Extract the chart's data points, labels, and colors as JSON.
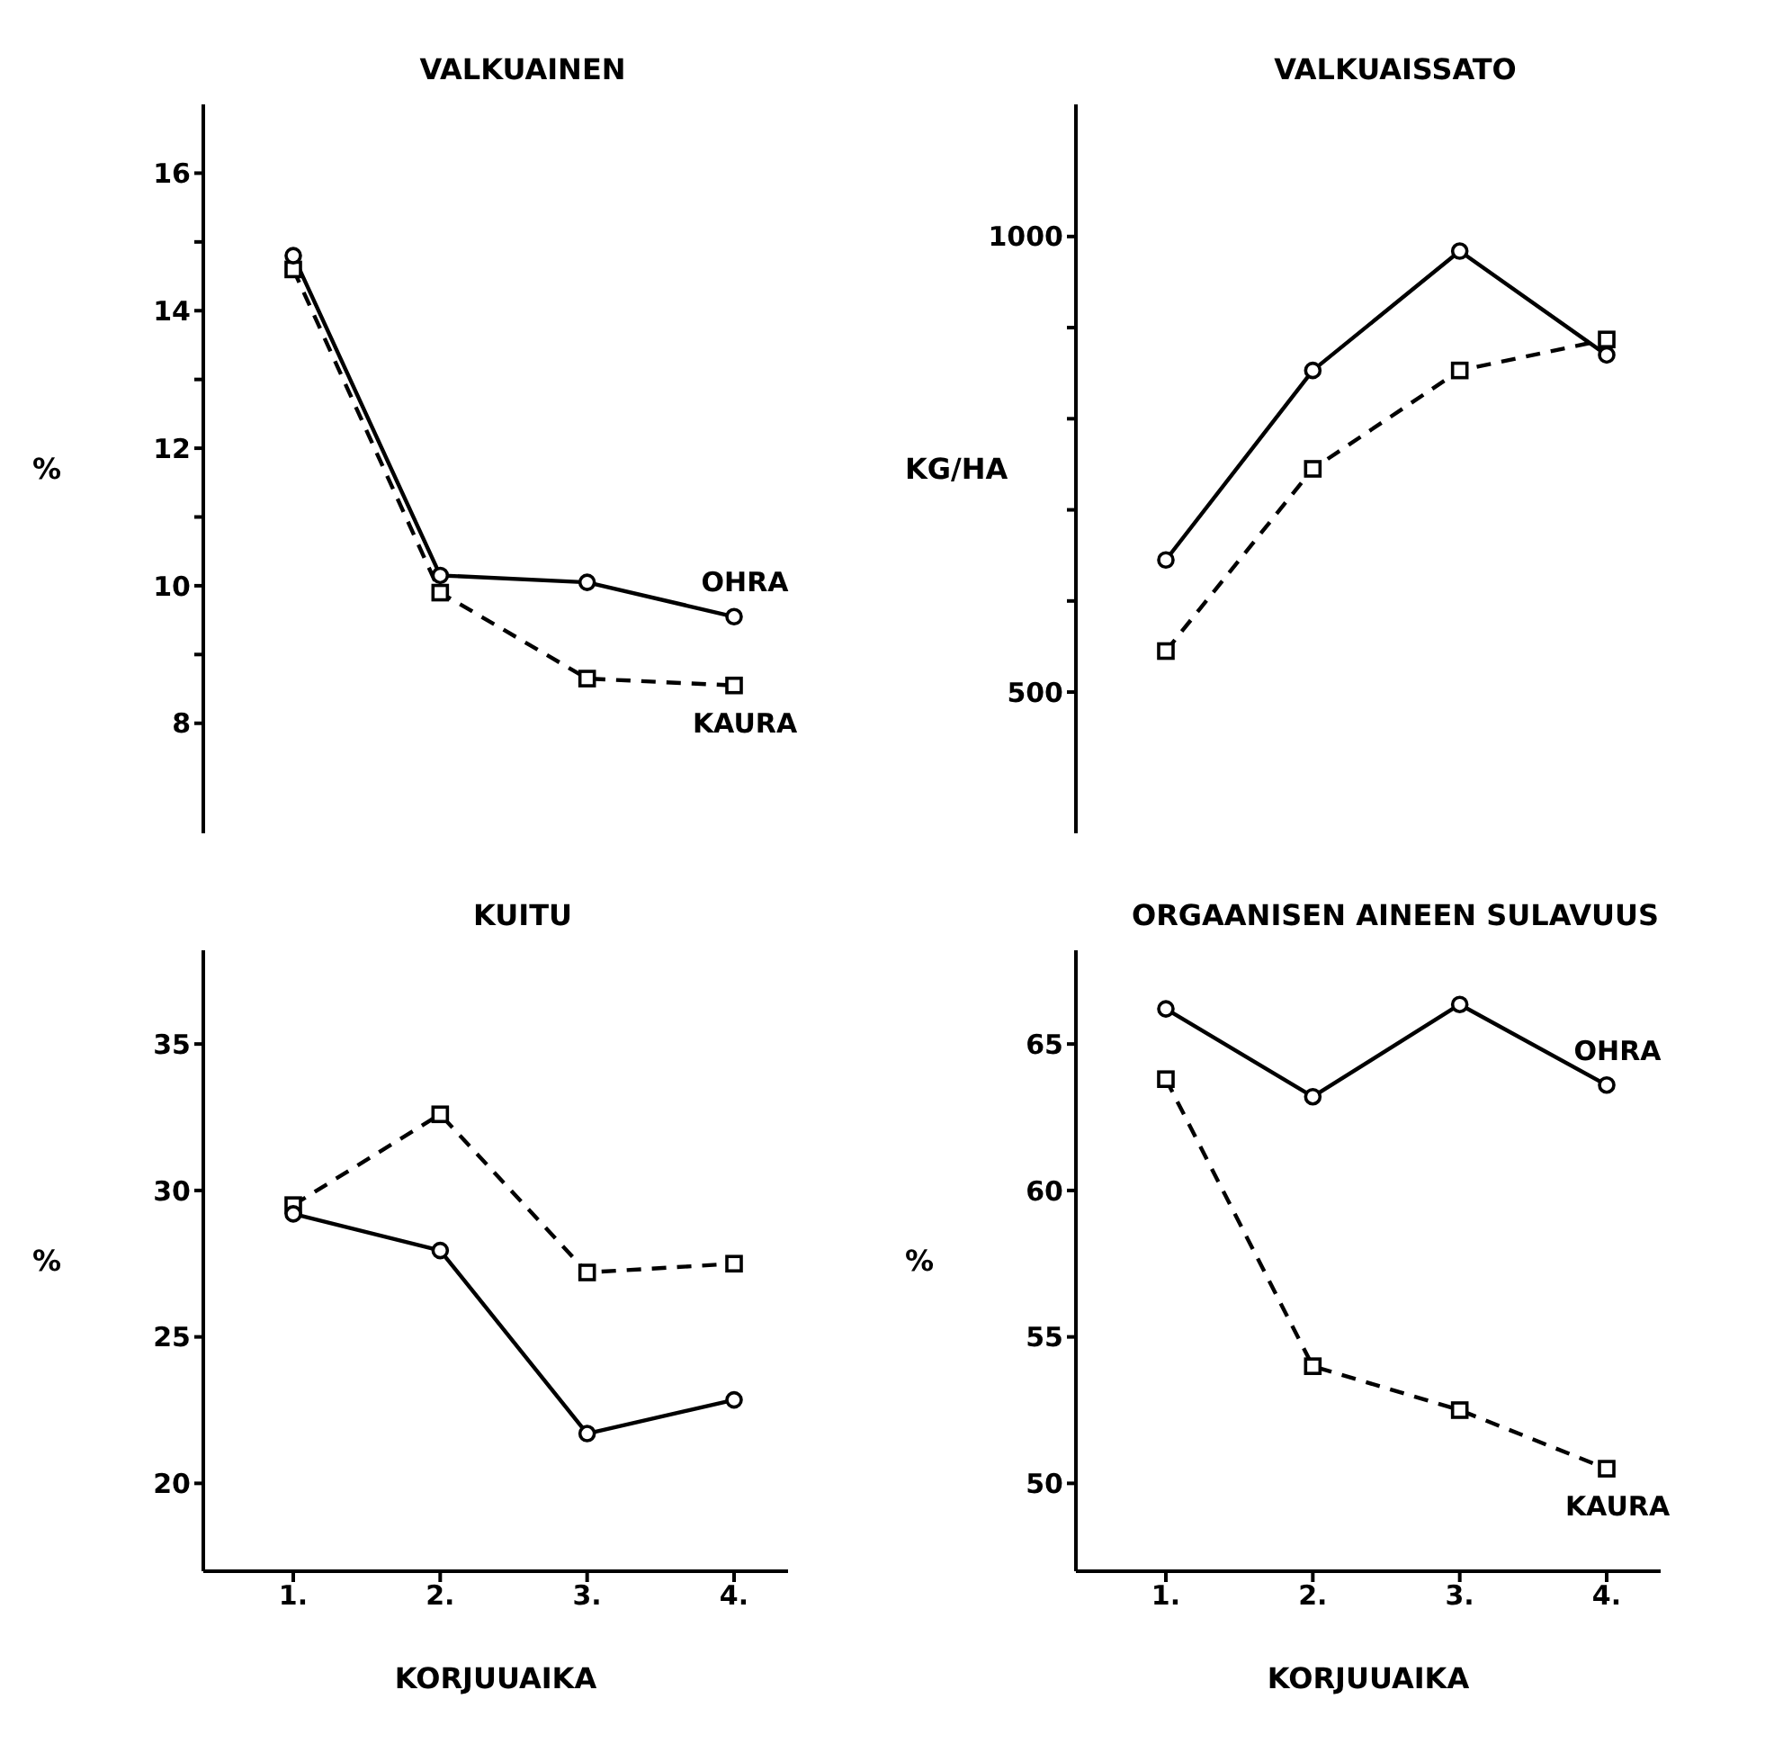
{
  "chart_data": [
    {
      "type": "line",
      "title": "VALKUAINEN",
      "ylabel": "%",
      "categories": [
        "1.",
        "2.",
        "3.",
        "4."
      ],
      "tick_labels": "y",
      "ylim": [
        6.4,
        17
      ],
      "yticks": [
        {
          "value": 8,
          "label": "8"
        },
        {
          "value": 9,
          "label": null
        },
        {
          "value": 10,
          "label": "10"
        },
        {
          "value": 11,
          "label": null
        },
        {
          "value": 12,
          "label": "12"
        },
        {
          "value": 13,
          "label": null
        },
        {
          "value": 14,
          "label": "14"
        },
        {
          "value": 15,
          "label": null
        },
        {
          "value": 16,
          "label": "16"
        }
      ],
      "series": [
        {
          "name": "OHRA",
          "color": "#000000",
          "marker": "circle",
          "line_style": "solid",
          "values": [
            14.8,
            10.15,
            10.05,
            9.55
          ]
        },
        {
          "name": "KAURA",
          "color": "#000000",
          "marker": "square",
          "line_style": "dashed",
          "values": [
            14.6,
            9.9,
            8.65,
            8.55
          ]
        }
      ]
    },
    {
      "type": "line",
      "title": "VALKUAISSATO",
      "ylabel": "KG/HA",
      "categories": [
        "1.",
        "2.",
        "3.",
        "4."
      ],
      "tick_labels": "y",
      "ylim": [
        345,
        1145
      ],
      "yticks": [
        500,
        {
          "value": 600,
          "label": null
        },
        {
          "value": 700,
          "label": null
        },
        {
          "value": 800,
          "label": null
        },
        {
          "value": 900,
          "label": null
        },
        1000
      ],
      "series": [
        {
          "color": "#000000",
          "marker": "circle",
          "line_style": "solid",
          "values": [
            645,
            853,
            984,
            870
          ]
        },
        {
          "color": "#000000",
          "marker": "square",
          "line_style": "dashed",
          "values": [
            545,
            745,
            853,
            887
          ]
        }
      ]
    },
    {
      "type": "line",
      "title": "KUITU",
      "ylabel": "%",
      "xlabel": "KORJUUAIKA",
      "categories": [
        "1.",
        "2.",
        "3.",
        "4."
      ],
      "ylim": [
        17,
        38.2
      ],
      "yticks": [
        20,
        25,
        30,
        35
      ],
      "series": [
        {
          "color": "#000000",
          "marker": "circle",
          "line_style": "solid",
          "values": [
            29.2,
            27.95,
            21.7,
            22.85
          ]
        },
        {
          "color": "#000000",
          "marker": "square",
          "line_style": "dashed",
          "values": [
            29.5,
            32.6,
            27.2,
            27.5
          ]
        }
      ]
    },
    {
      "type": "line",
      "title": "ORGAANISEN AINEEN SULAVUUS",
      "ylabel": "%",
      "xlabel": "KORJUUAIKA",
      "categories": [
        "1.",
        "2.",
        "3.",
        "4."
      ],
      "ylim": [
        47,
        68.2
      ],
      "yticks": [
        50,
        55,
        60,
        65
      ],
      "series": [
        {
          "name": "OHRA",
          "color": "#000000",
          "marker": "circle",
          "line_style": "solid",
          "values": [
            66.2,
            63.2,
            66.35,
            63.6
          ]
        },
        {
          "name": "KAURA",
          "color": "#000000",
          "marker": "square",
          "line_style": "dashed",
          "values": [
            63.8,
            54.0,
            52.5,
            50.5
          ]
        }
      ]
    }
  ]
}
